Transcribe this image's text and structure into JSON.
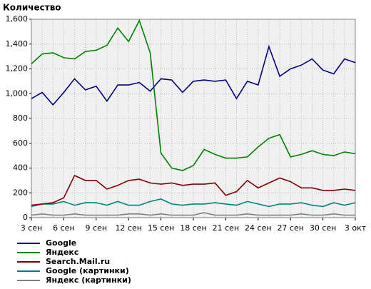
{
  "chart_data": {
    "type": "line",
    "title": "Количество",
    "categories": [
      "3 сен",
      null,
      null,
      "6 сен",
      null,
      null,
      "9 сен",
      null,
      null,
      "12 сен",
      null,
      null,
      "15 сен",
      null,
      null,
      "18 сен",
      null,
      null,
      "21 сен",
      null,
      null,
      "24 сен",
      null,
      null,
      "27 сен",
      null,
      null,
      "30 сен",
      null,
      null,
      "3 окт"
    ],
    "series": [
      {
        "name": "Google",
        "color": "#000080",
        "values": [
          960,
          1010,
          910,
          1010,
          1120,
          1030,
          1060,
          940,
          1070,
          1070,
          1090,
          1020,
          1120,
          1110,
          1010,
          1100,
          1110,
          1100,
          1110,
          960,
          1100,
          1070,
          1380,
          1140,
          1200,
          1230,
          1280,
          1190,
          1160,
          1280,
          1250
        ]
      },
      {
        "name": "Яндекс",
        "color": "#008000",
        "values": [
          1240,
          1320,
          1330,
          1290,
          1280,
          1340,
          1350,
          1390,
          1530,
          1420,
          1590,
          1330,
          520,
          400,
          380,
          420,
          550,
          510,
          480,
          480,
          490,
          570,
          640,
          670,
          490,
          510,
          540,
          510,
          500,
          530,
          515
        ]
      },
      {
        "name": "Search.Mail.ru",
        "color": "#800000",
        "values": [
          100,
          110,
          120,
          160,
          340,
          300,
          300,
          230,
          260,
          300,
          310,
          280,
          270,
          280,
          260,
          270,
          270,
          280,
          180,
          210,
          300,
          240,
          280,
          320,
          290,
          240,
          240,
          220,
          220,
          230,
          220
        ]
      },
      {
        "name": "Google (картинки)",
        "color": "#008080",
        "values": [
          90,
          110,
          110,
          130,
          100,
          120,
          120,
          100,
          130,
          100,
          100,
          130,
          150,
          110,
          100,
          110,
          110,
          120,
          110,
          100,
          130,
          110,
          90,
          110,
          110,
          120,
          100,
          90,
          120,
          100,
          120
        ]
      },
      {
        "name": "Яндекс (картинки)",
        "color": "#808080",
        "values": [
          20,
          30,
          20,
          20,
          30,
          20,
          20,
          20,
          20,
          30,
          30,
          20,
          30,
          20,
          20,
          20,
          40,
          20,
          20,
          20,
          30,
          20,
          20,
          20,
          20,
          30,
          20,
          20,
          30,
          20,
          20
        ]
      }
    ],
    "ylim": [
      0,
      1600
    ],
    "yticks": [
      0,
      200,
      400,
      600,
      800,
      {
        "value": 1000,
        "label": "1,000"
      },
      {
        "value": 1200,
        "label": "1,200"
      },
      {
        "value": 1400,
        "label": "1,400"
      },
      {
        "value": 1600,
        "label": "1,600"
      }
    ],
    "grid": true,
    "legend": "bottom"
  }
}
